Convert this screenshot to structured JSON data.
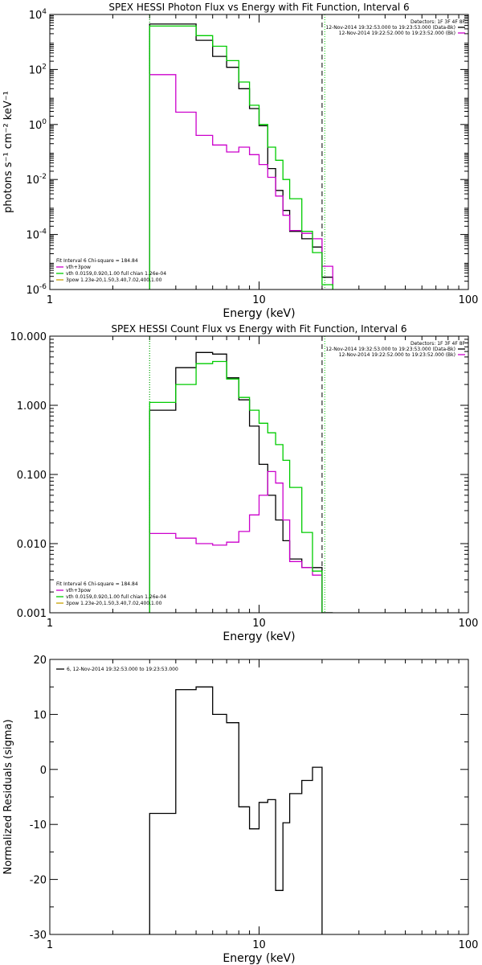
{
  "figure": {
    "background": "#ffffff",
    "frame_color": "#000000"
  },
  "chart_data": [
    {
      "id": "photon",
      "type": "line",
      "title": "SPEX HESSI Photon Flux vs Energy with Fit Function, Interval 6",
      "xlabel": "Energy (keV)",
      "ylabel": "photons s⁻¹ cm⁻² keV⁻¹",
      "xscale": "log",
      "yscale": "log",
      "xlim": [
        1,
        100
      ],
      "ylim": [
        1e-06,
        10000
      ],
      "xticks": [
        1,
        10,
        100
      ],
      "xticklabels": [
        "1",
        "10",
        "100"
      ],
      "yticks": [
        1e-06,
        0.0001,
        0.01,
        1,
        100,
        10000
      ],
      "ytick_base": "10",
      "ytick_exps": [
        "-6",
        "-4",
        "-2",
        "0",
        "2",
        "4"
      ],
      "edges": [
        3,
        4,
        5,
        6,
        7,
        8,
        9,
        10,
        11,
        12,
        13,
        14,
        16,
        18,
        20,
        22.5
      ],
      "series": [
        {
          "color": "#000000",
          "values": [
            4500,
            4500,
            1150,
            300,
            120,
            20,
            3.8,
            0.9,
            0.025,
            0.004,
            0.00075,
            0.00013,
            7e-05,
            3.5e-05,
            2.8e-06
          ]
        },
        {
          "color": "#cc00cc",
          "values": [
            65,
            2.8,
            0.4,
            0.18,
            0.1,
            0.15,
            0.08,
            0.035,
            0.012,
            0.0025,
            0.0005,
            0.00014,
            0.00011,
            7e-05,
            7e-06
          ]
        },
        {
          "color": "#00cc00",
          "values": [
            3800,
            3800,
            1700,
            700,
            210,
            35,
            5,
            1.0,
            0.15,
            0.05,
            0.01,
            0.002,
            0.00013,
            2.2e-05,
            1.5e-06
          ]
        }
      ],
      "vlines": [
        {
          "x": 3,
          "style": "dotted",
          "color": "#000000"
        },
        {
          "x": 3,
          "style": "dotted",
          "color": "#00cc00"
        },
        {
          "x": 20,
          "style": "dashed",
          "color": "#000000"
        },
        {
          "x": 20.6,
          "style": "dotted",
          "color": "#00cc00"
        }
      ],
      "legend_left": {
        "title": "Fit Interval 6   Chi-square = 184.84",
        "items": [
          {
            "text": "vth+3pow",
            "color": "#cc00cc"
          },
          {
            "text": "vth 0.0159,0.920,1.00  full chian 1.26e-04",
            "color": "#00cc00"
          },
          {
            "text": "3pow 1.23e-20,1.50,3.40,7.02,400,1.00",
            "color": "#c8a000"
          }
        ]
      },
      "legend_right": {
        "title": "Detectors: 1F 3F 4F 8F",
        "items": [
          {
            "text": "12-Nov-2014 19:32:53.000 to 19:23:53.000 (Data-Bk)",
            "color": "#000000"
          },
          {
            "text": "12-Nov-2014 19:22:52.000 to 19:23:52.000 (Bk)",
            "color": "#cc00cc"
          }
        ]
      }
    },
    {
      "id": "count",
      "type": "line",
      "title": "SPEX HESSI Count Flux vs Energy with Fit Function, Interval 6",
      "xlabel": "Energy (keV)",
      "ylabel": "",
      "xscale": "log",
      "yscale": "log",
      "xlim": [
        1,
        100
      ],
      "ylim": [
        0.001,
        10
      ],
      "xticks": [
        1,
        10,
        100
      ],
      "xticklabels": [
        "1",
        "10",
        "100"
      ],
      "yticks": [
        0.001,
        0.01,
        0.1,
        1,
        10
      ],
      "yticklabels": [
        "0.001",
        "0.010",
        "0.100",
        "1.000",
        "10.000"
      ],
      "edges": [
        3,
        4,
        5,
        6,
        7,
        8,
        9,
        10,
        11,
        12,
        13,
        14,
        16,
        18,
        20,
        22.5
      ],
      "series": [
        {
          "color": "#000000",
          "values": [
            0.85,
            3.5,
            5.8,
            5.5,
            2.5,
            1.2,
            0.5,
            0.14,
            0.05,
            0.022,
            0.011,
            0.006,
            0.0045,
            0.0045,
            0.001
          ]
        },
        {
          "color": "#cc00cc",
          "values": [
            0.014,
            0.012,
            0.01,
            0.0095,
            0.0105,
            0.015,
            0.026,
            0.05,
            0.11,
            0.075,
            0.022,
            0.0055,
            0.0045,
            0.0035,
            0.001
          ]
        },
        {
          "color": "#00cc00",
          "values": [
            1.1,
            2.0,
            4.0,
            4.3,
            2.4,
            1.3,
            0.85,
            0.55,
            0.4,
            0.27,
            0.16,
            0.065,
            0.0145,
            0.004,
            0.001
          ]
        }
      ],
      "vlines": [
        {
          "x": 3,
          "style": "dotted",
          "color": "#000000"
        },
        {
          "x": 3,
          "style": "dotted",
          "color": "#00cc00"
        },
        {
          "x": 20,
          "style": "dashed",
          "color": "#000000"
        },
        {
          "x": 20.6,
          "style": "dotted",
          "color": "#00cc00"
        }
      ],
      "legend_left": {
        "title": "Fit Interval 6   Chi-square = 184.84",
        "items": [
          {
            "text": "vth+3pow",
            "color": "#cc00cc"
          },
          {
            "text": "vth 0.0159,0.920,1.00  full chian 1.26e-04",
            "color": "#00cc00"
          },
          {
            "text": "3pow 1.23e-20,1.50,3.40,7.02,400,1.00",
            "color": "#c8a000"
          }
        ]
      },
      "legend_right": {
        "title": "Detectors: 1F 3F 4F 8F",
        "items": [
          {
            "text": "12-Nov-2014 19:32:53.000 to 19:23:53.000 (Data-Bk)",
            "color": "#000000"
          },
          {
            "text": "12-Nov-2014 19:22:52.000 to 19:23:52.000 (Bk)",
            "color": "#cc00cc"
          }
        ]
      }
    },
    {
      "id": "resid",
      "type": "line",
      "title": "",
      "xlabel": "Energy (keV)",
      "ylabel": "Normalized Residuals (sigma)",
      "xscale": "log",
      "yscale": "linear",
      "xlim": [
        1,
        100
      ],
      "ylim": [
        -30,
        20
      ],
      "xticks": [
        1,
        10,
        100
      ],
      "xticklabels": [
        "1",
        "10",
        "100"
      ],
      "yticks": [
        -30,
        -20,
        -10,
        0,
        10,
        20
      ],
      "yticklabels": [
        "-30",
        "-20",
        "-10",
        "0",
        "10",
        "20"
      ],
      "edges": [
        3,
        4,
        5,
        6,
        7,
        8,
        9,
        10,
        11,
        12,
        13,
        14,
        16,
        18,
        20
      ],
      "series": [
        {
          "color": "#000000",
          "values": [
            -8,
            14.5,
            15,
            10,
            8.5,
            -6.8,
            -10.8,
            -6,
            -5.5,
            -22,
            -9.7,
            -4.4,
            -2,
            0.4
          ]
        }
      ],
      "vlines": [],
      "legend_left": null,
      "legend_right": null,
      "legend_top": {
        "items": [
          {
            "text": "6, 12-Nov-2014 19:32:53.000 to 19:23:53.000",
            "color": "#000000"
          }
        ]
      }
    }
  ]
}
